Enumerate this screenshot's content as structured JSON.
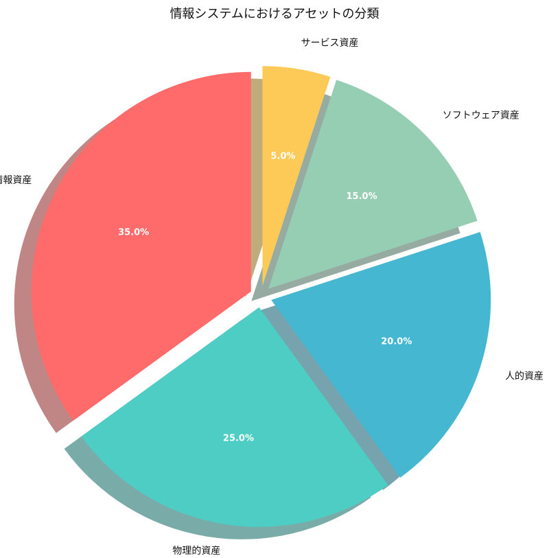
{
  "chart_data": {
    "type": "pie",
    "title": "情報システムにおけるアセットの分類",
    "categories": [
      "情報資産",
      "物理的資産",
      "人的資産",
      "ソフトウェア資産",
      "サービス資産"
    ],
    "values": [
      35.0,
      25.0,
      20.0,
      15.0,
      5.0
    ],
    "value_labels": [
      "35.0%",
      "25.0%",
      "20.0%",
      "15.0%",
      "5.0%"
    ],
    "colors": [
      "#FF6B6B",
      "#4ECDC4",
      "#45B7D1",
      "#96CEB4",
      "#FECA57"
    ],
    "start_angle_deg": 90,
    "direction": "counterclockwise",
    "explode": [
      0.05,
      0.05,
      0.05,
      0.05,
      0.05
    ],
    "shadow": true,
    "legend": "none"
  }
}
